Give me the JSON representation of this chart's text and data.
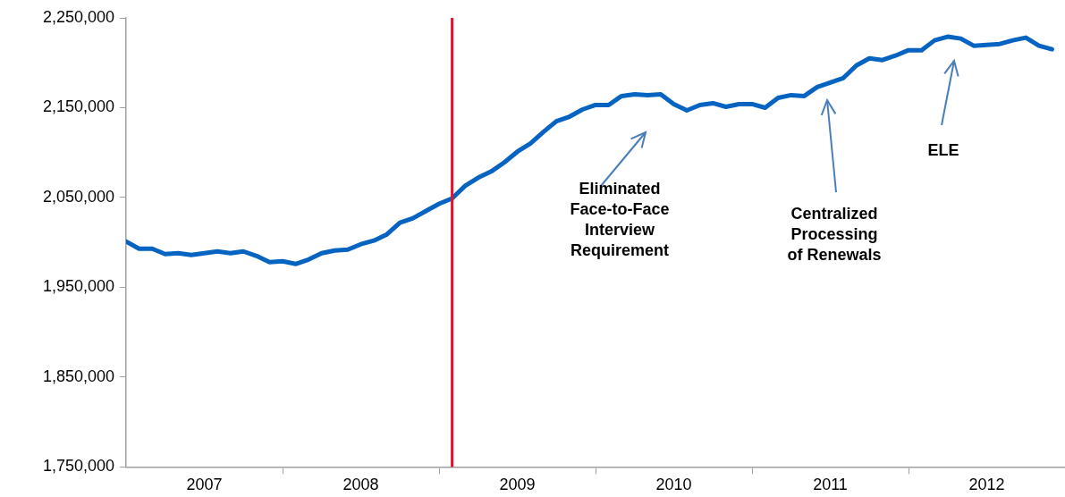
{
  "chart_data": {
    "type": "line",
    "x": [
      "2007-01",
      "2007-02",
      "2007-03",
      "2007-04",
      "2007-05",
      "2007-06",
      "2007-07",
      "2007-08",
      "2007-09",
      "2007-10",
      "2007-11",
      "2007-12",
      "2008-01",
      "2008-02",
      "2008-03",
      "2008-04",
      "2008-05",
      "2008-06",
      "2008-07",
      "2008-08",
      "2008-09",
      "2008-10",
      "2008-11",
      "2008-12",
      "2009-01",
      "2009-02",
      "2009-03",
      "2009-04",
      "2009-05",
      "2009-06",
      "2009-07",
      "2009-08",
      "2009-09",
      "2009-10",
      "2009-11",
      "2009-12",
      "2010-01",
      "2010-02",
      "2010-03",
      "2010-04",
      "2010-05",
      "2010-06",
      "2010-07",
      "2010-08",
      "2010-09",
      "2010-10",
      "2010-11",
      "2010-12",
      "2011-01",
      "2011-02",
      "2011-03",
      "2011-04",
      "2011-05",
      "2011-06",
      "2011-07",
      "2011-08",
      "2011-09",
      "2011-10",
      "2011-11",
      "2011-12",
      "2012-01",
      "2012-02",
      "2012-03",
      "2012-04",
      "2012-05",
      "2012-06",
      "2012-07",
      "2012-08",
      "2012-09",
      "2012-10",
      "2012-11",
      "2012-12"
    ],
    "series": [
      {
        "color": "#0563c1",
        "values": [
          2001000,
          1993000,
          1993000,
          1987000,
          1988000,
          1986000,
          1988000,
          1990000,
          1988000,
          1990000,
          1985000,
          1978000,
          1979000,
          1976000,
          1981000,
          1988000,
          1991000,
          1992000,
          1998000,
          2002000,
          2009000,
          2022000,
          2027000,
          2035000,
          2043000,
          2049000,
          2063000,
          2072000,
          2079000,
          2089000,
          2101000,
          2110000,
          2123000,
          2135000,
          2140000,
          2148000,
          2153000,
          2153000,
          2163000,
          2165000,
          2164000,
          2165000,
          2154000,
          2147000,
          2153000,
          2155000,
          2151000,
          2154000,
          2154000,
          2150000,
          2161000,
          2164000,
          2163000,
          2173000,
          2178000,
          2183000,
          2197000,
          2205000,
          2203000,
          2208000,
          2214000,
          2214000,
          2225000,
          2229000,
          2227000,
          2219000,
          2220000,
          2221000,
          2225000,
          2228000,
          2219000,
          2215000
        ]
      }
    ],
    "xlim": [
      "2007-01",
      "2013-01"
    ],
    "xticks": [
      {
        "value": "2007-07",
        "label": "2007"
      },
      {
        "value": "2008-01",
        "label": null
      },
      {
        "value": "2008-07",
        "label": "2008"
      },
      {
        "value": "2009-01",
        "label": null
      },
      {
        "value": "2009-07",
        "label": "2009"
      },
      {
        "value": "2010-01",
        "label": null
      },
      {
        "value": "2010-07",
        "label": "2010"
      },
      {
        "value": "2011-01",
        "label": null
      },
      {
        "value": "2011-07",
        "label": "2011"
      },
      {
        "value": "2012-01",
        "label": null
      },
      {
        "value": "2012-07",
        "label": "2012"
      }
    ],
    "ylim": [
      1750000,
      2250000
    ],
    "yticks": [
      {
        "value": 1750000,
        "label": "1,750,000"
      },
      {
        "value": 1850000,
        "label": "1,850,000"
      },
      {
        "value": 1950000,
        "label": "1,950,000"
      },
      {
        "value": 2050000,
        "label": "2,050,000"
      },
      {
        "value": 2150000,
        "label": "2,150,000"
      },
      {
        "value": 2250000,
        "label": "2,250,000"
      }
    ],
    "ref_lines": [
      {
        "axis": "x",
        "value": "2009-02",
        "color": "#e8112d"
      }
    ],
    "annotations": [
      "Eliminated\nFace-to-Face\nInterview\nRequirement",
      "Centralized\nProcessing\nof Renewals",
      "ELE"
    ],
    "grid": false,
    "legend": false,
    "marker": "none",
    "line_style": "solid"
  }
}
